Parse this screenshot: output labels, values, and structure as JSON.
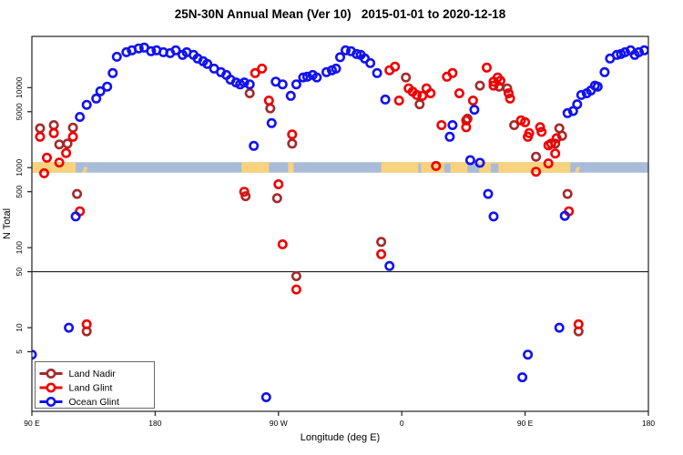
{
  "title": "25N-30N Annual Mean (Ver 10)   2015-01-01 to 2020-12-18",
  "chart_data": {
    "type": "scatter",
    "title": "25N-30N Annual Mean (Ver 10)   2015-01-01 to 2020-12-18",
    "xlabel": "Longitude (deg E)",
    "ylabel": "N Total",
    "x_scale": "linear",
    "y_scale": "log",
    "x_axis_span_deg": [
      0,
      450
    ],
    "ylim": [
      0.9,
      43700
    ],
    "grid": false,
    "x_ticks": [
      {
        "deg": 0,
        "label": "90 E"
      },
      {
        "deg": 90,
        "label": "180"
      },
      {
        "deg": 180,
        "label": "90 W"
      },
      {
        "deg": 270,
        "label": "0"
      },
      {
        "deg": 360,
        "label": "90 E"
      },
      {
        "deg": 450,
        "label": "180"
      }
    ],
    "y_ticks": [
      {
        "value": 10000,
        "label": "10000"
      },
      {
        "value": 5000,
        "label": "5000"
      },
      {
        "value": 1000,
        "label": "1000"
      },
      {
        "value": 500,
        "label": "500"
      },
      {
        "value": 100,
        "label": "100"
      },
      {
        "value": 50,
        "label": "50"
      },
      {
        "value": 10,
        "label": "10"
      },
      {
        "value": 5,
        "label": "5"
      }
    ],
    "reference_line": {
      "y_value": 50,
      "color": "#000000"
    },
    "map_strip": {
      "y_center_value": 1000,
      "ocean_color": "#A8BCD8",
      "land_color": "#F9D27E",
      "land_segments_deg": [
        [
          0,
          32
        ],
        [
          153,
          173
        ],
        [
          187,
          191
        ],
        [
          255,
          393
        ]
      ],
      "ocean_notches_deg": [
        [
          282,
          284
        ],
        [
          301,
          305.5
        ],
        [
          318,
          326.5
        ],
        [
          335,
          340.5
        ]
      ],
      "island_marks_deg": [
        37.5,
        397
      ]
    },
    "legend": {
      "position": "bottom-left",
      "entries": [
        {
          "label": "Land Nadir",
          "color": "#A52A2A"
        },
        {
          "label": "Land Glint",
          "color": "#F00000"
        },
        {
          "label": "Ocean Glint",
          "color": "#1212F0"
        }
      ]
    },
    "series": [
      {
        "name": "Land Nadir",
        "color": "#A52A2A",
        "points": [
          [
            6,
            3100
          ],
          [
            16,
            3400
          ],
          [
            20,
            1950
          ],
          [
            26,
            2000
          ],
          [
            30,
            3160
          ],
          [
            33,
            470
          ],
          [
            40,
            9
          ],
          [
            156,
            440
          ],
          [
            159,
            8500
          ],
          [
            174,
            5500
          ],
          [
            179,
            415
          ],
          [
            190,
            2000
          ],
          [
            193,
            44
          ],
          [
            255,
            118
          ],
          [
            273,
            13400
          ],
          [
            283,
            6200
          ],
          [
            318,
            4100
          ],
          [
            327,
            10600
          ],
          [
            341,
            10300
          ],
          [
            347,
            9800
          ],
          [
            352,
            3400
          ],
          [
            368,
            1370
          ],
          [
            382,
            2000
          ],
          [
            385,
            3100
          ],
          [
            387,
            2500
          ],
          [
            391,
            470
          ],
          [
            399,
            9
          ]
        ]
      },
      {
        "name": "Land Glint",
        "color": "#F00000",
        "points": [
          [
            6,
            2430
          ],
          [
            9,
            850
          ],
          [
            11,
            1330
          ],
          [
            16,
            2700
          ],
          [
            20,
            1160
          ],
          [
            25,
            1520
          ],
          [
            30,
            2430
          ],
          [
            35,
            285
          ],
          [
            40,
            11
          ],
          [
            155,
            500
          ],
          [
            163,
            15200
          ],
          [
            168,
            17300
          ],
          [
            173,
            6900
          ],
          [
            180,
            620
          ],
          [
            183,
            110
          ],
          [
            190,
            2600
          ],
          [
            193,
            30
          ],
          [
            255,
            83
          ],
          [
            261,
            16500
          ],
          [
            265,
            18300
          ],
          [
            268,
            6900
          ],
          [
            275,
            9800
          ],
          [
            278,
            8900
          ],
          [
            281,
            8100
          ],
          [
            285,
            7900
          ],
          [
            288,
            9800
          ],
          [
            291,
            8500
          ],
          [
            295,
            1050
          ],
          [
            299,
            3400
          ],
          [
            303,
            13700
          ],
          [
            307,
            15200
          ],
          [
            312,
            8500
          ],
          [
            317,
            3900
          ],
          [
            317,
            3200
          ],
          [
            322,
            6900
          ],
          [
            332,
            17800
          ],
          [
            337,
            11900
          ],
          [
            337,
            10600
          ],
          [
            340,
            13400
          ],
          [
            342,
            12200
          ],
          [
            348,
            8500
          ],
          [
            349,
            7300
          ],
          [
            357,
            3900
          ],
          [
            360,
            3700
          ],
          [
            362,
            2430
          ],
          [
            363,
            2700
          ],
          [
            368,
            890
          ],
          [
            371,
            3200
          ],
          [
            372,
            2800
          ],
          [
            377,
            1900
          ],
          [
            377,
            1130
          ],
          [
            379,
            2000
          ],
          [
            382,
            1500
          ],
          [
            383,
            2330
          ],
          [
            392,
            285
          ],
          [
            399,
            11
          ]
        ]
      },
      {
        "name": "Ocean Glint",
        "color": "#1212F0",
        "points": [
          [
            0,
            4.6
          ],
          [
            27,
            10
          ],
          [
            32,
            245
          ],
          [
            35,
            4300
          ],
          [
            40,
            6100
          ],
          [
            47,
            7300
          ],
          [
            50,
            9000
          ],
          [
            55,
            10300
          ],
          [
            59,
            15200
          ],
          [
            62,
            24300
          ],
          [
            69,
            27700
          ],
          [
            73,
            29300
          ],
          [
            78,
            30900
          ],
          [
            82,
            31700
          ],
          [
            87,
            28500
          ],
          [
            91,
            29300
          ],
          [
            96,
            27700
          ],
          [
            101,
            27000
          ],
          [
            105,
            29300
          ],
          [
            110,
            25700
          ],
          [
            113,
            27700
          ],
          [
            118,
            25700
          ],
          [
            121,
            23100
          ],
          [
            125,
            21400
          ],
          [
            128,
            19800
          ],
          [
            133,
            17300
          ],
          [
            138,
            15600
          ],
          [
            142,
            14400
          ],
          [
            145,
            12600
          ],
          [
            149,
            11600
          ],
          [
            152,
            11000
          ],
          [
            155,
            11600
          ],
          [
            159,
            11000
          ],
          [
            162,
            1870
          ],
          [
            171,
            1.35
          ],
          [
            175,
            3600
          ],
          [
            178,
            11900
          ],
          [
            183,
            11000
          ],
          [
            189,
            7900
          ],
          [
            193,
            11000
          ],
          [
            198,
            13400
          ],
          [
            201,
            13700
          ],
          [
            205,
            14400
          ],
          [
            208,
            13400
          ],
          [
            215,
            15600
          ],
          [
            219,
            16500
          ],
          [
            222,
            17300
          ],
          [
            225,
            24000
          ],
          [
            229,
            29300
          ],
          [
            233,
            28500
          ],
          [
            237,
            26300
          ],
          [
            240,
            25700
          ],
          [
            243,
            23100
          ],
          [
            247,
            20300
          ],
          [
            252,
            15200
          ],
          [
            258,
            7100
          ],
          [
            261,
            59
          ],
          [
            305,
            2430
          ],
          [
            307,
            3400
          ],
          [
            320,
            1240
          ],
          [
            323,
            5300
          ],
          [
            327,
            1150
          ],
          [
            333,
            470
          ],
          [
            337,
            245
          ],
          [
            358,
            2.4
          ],
          [
            362,
            4.6
          ],
          [
            385,
            10
          ],
          [
            389,
            250
          ],
          [
            391,
            4800
          ],
          [
            395,
            5100
          ],
          [
            398,
            6200
          ],
          [
            401,
            8100
          ],
          [
            405,
            8500
          ],
          [
            408,
            9200
          ],
          [
            411,
            10600
          ],
          [
            413,
            10300
          ],
          [
            418,
            15600
          ],
          [
            422,
            23100
          ],
          [
            427,
            25700
          ],
          [
            430,
            26300
          ],
          [
            433,
            27700
          ],
          [
            437,
            29300
          ],
          [
            440,
            25700
          ],
          [
            443,
            27700
          ],
          [
            447,
            29300
          ]
        ]
      }
    ]
  }
}
